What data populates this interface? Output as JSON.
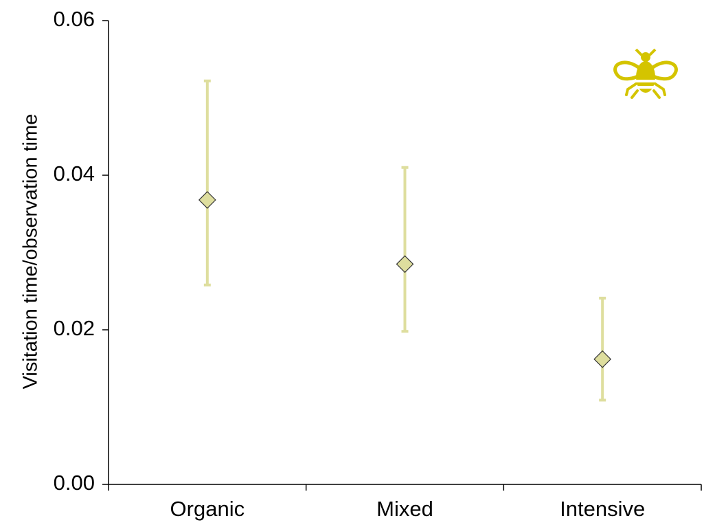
{
  "chart_data": {
    "type": "scatter",
    "title": "",
    "xlabel": "",
    "ylabel": "Visitation time/observation time",
    "categories": [
      "Organic",
      "Mixed",
      "Intensive"
    ],
    "series": [
      {
        "values": [
          0.0368,
          0.0285,
          0.0162
        ],
        "error_low": [
          0.0258,
          0.0198,
          0.0109
        ],
        "error_high": [
          0.0522,
          0.041,
          0.0241
        ],
        "marker": "diamond"
      }
    ],
    "ylim": [
      0,
      0.06
    ],
    "yticks": [
      "0.00",
      "0.02",
      "0.04",
      "0.06"
    ],
    "grid": false,
    "legend": "none"
  },
  "colors": {
    "marker_fill": "#dede9e",
    "marker_stroke": "#333333",
    "error_bar": "#dede9e",
    "bee_icon": "#d4c400",
    "axis": "#000000"
  },
  "icons": {
    "corner_icon": "bee-icon"
  }
}
